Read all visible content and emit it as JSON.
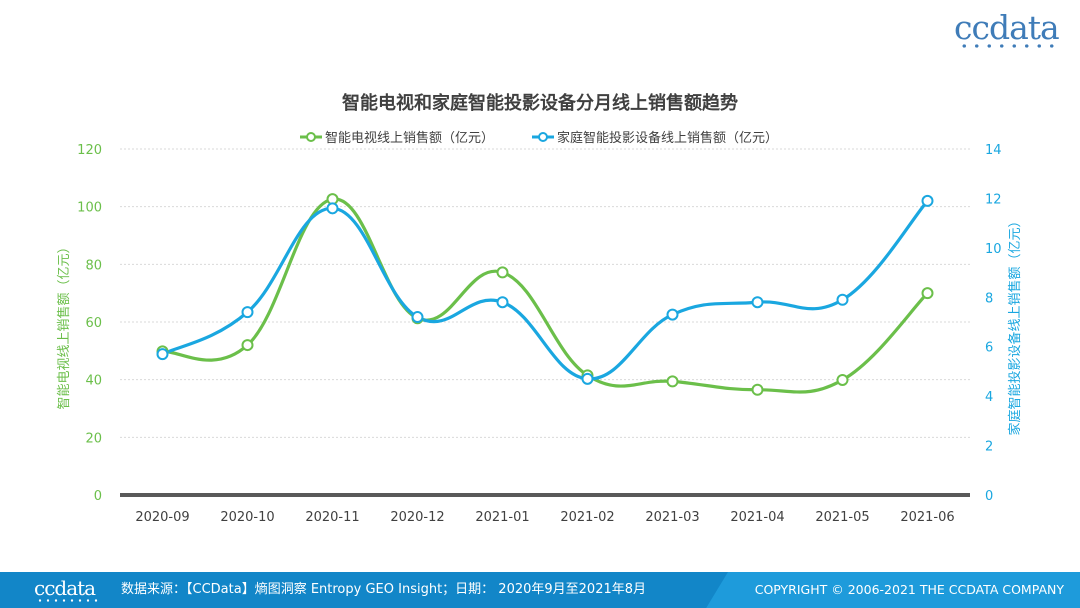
{
  "brand": {
    "logo_text": "ccdata"
  },
  "footer": {
    "logo_text": "ccdata",
    "source": "数据来源：【CCData】熵图洞察 Entropy GEO Insight；日期： 2020年9月至2021年8月",
    "copyright": "COPYRIGHT © 2006-2021 THE CCDATA COMPANY"
  },
  "colors": {
    "tv": "#6BBF4A",
    "projector": "#1AA7E0",
    "footer_bg": "#1E9BDB",
    "footer_band": "#1286C8",
    "logo": "#3F7CB8"
  },
  "chart_data": {
    "type": "line",
    "title": "智能电视和家庭智能投影设备分月线上销售额趋势",
    "categories": [
      "2020-09",
      "2020-10",
      "2020-11",
      "2020-12",
      "2021-01",
      "2021-02",
      "2021-03",
      "2021-04",
      "2021-05",
      "2021-06"
    ],
    "series": [
      {
        "name": "智能电视线上销售额（亿元）",
        "axis": "left",
        "color": "#6BBF4A",
        "values": [
          49.8,
          52.0,
          102.6,
          61.3,
          77.2,
          41.5,
          39.4,
          36.5,
          39.9,
          70.0
        ]
      },
      {
        "name": "家庭智能投影设备线上销售额（亿元）",
        "axis": "right",
        "color": "#1AA7E0",
        "values": [
          5.7,
          7.4,
          11.6,
          7.2,
          7.8,
          4.7,
          7.3,
          7.8,
          7.9,
          11.9
        ]
      }
    ],
    "y_left": {
      "label": "智能电视线上销售额（亿元）",
      "range": [
        0,
        120
      ],
      "ticks": [
        "0",
        "20",
        "40",
        "60",
        "80",
        "100",
        "120"
      ]
    },
    "y_right": {
      "label": "家庭智能投影设备线上销售额（亿元）",
      "range": [
        0,
        14
      ],
      "ticks": [
        "0",
        "2",
        "4",
        "6",
        "8",
        "10",
        "12",
        "14"
      ]
    },
    "grid": true,
    "legend_position": "top",
    "smooth": true
  }
}
